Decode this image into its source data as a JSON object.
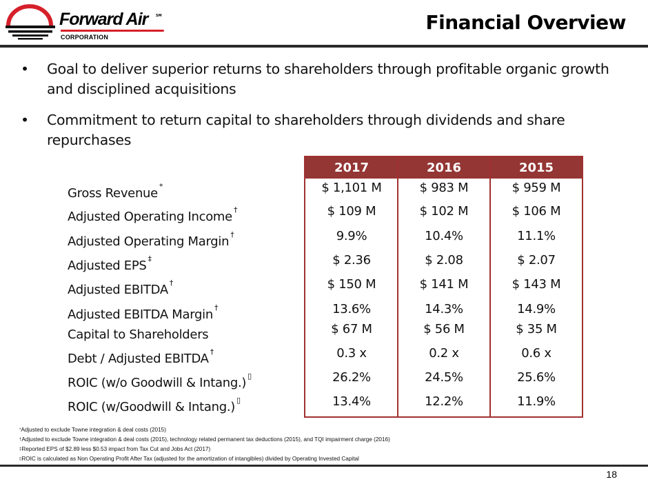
{
  "logo": {
    "name": "Forward Air",
    "mark": "SM",
    "subtitle": "CORPORATION"
  },
  "header": {
    "title": "Financial Overview"
  },
  "bullets": [
    {
      "symbol": "•",
      "text": "Goal to deliver superior returns to shareholders through profitable organic growth and disciplined acquisitions"
    },
    {
      "symbol": "•",
      "text": "Commitment to return capital to shareholders through dividends and share repurchases"
    }
  ],
  "table": {
    "columns": [
      "2017",
      "2016",
      "2015"
    ],
    "rows": [
      {
        "label": "Gross Revenue",
        "mark": "*",
        "values": [
          "$ 1,101 M",
          "$ 983 M",
          "$ 959 M"
        ]
      },
      {
        "label": "Adjusted Operating Income",
        "mark": "†",
        "values": [
          "$ 109 M",
          "$ 102 M",
          "$ 106 M"
        ]
      },
      {
        "label": "Adjusted Operating Margin",
        "mark": "†",
        "values": [
          "9.9%",
          "10.4%",
          "11.1%"
        ]
      },
      {
        "label": "Adjusted EPS",
        "mark": "‡",
        "values": [
          "$ 2.36",
          "$ 2.08",
          "$ 2.07"
        ]
      },
      {
        "label": "Adjusted EBITDA",
        "mark": "†",
        "values": [
          "$ 150 M",
          "$ 141 M",
          "$ 143 M"
        ]
      },
      {
        "label": "Adjusted EBITDA Margin",
        "mark": "†",
        "values": [
          "13.6%",
          "14.3%",
          "14.9%"
        ]
      },
      {
        "label": "Capital to Shareholders",
        "mark": "",
        "values": [
          "$ 67 M",
          "$ 56 M",
          "$ 35 M"
        ]
      },
      {
        "label": "Debt / Adjusted EBITDA",
        "mark": "†",
        "values": [
          "0.3 x",
          "0.2 x",
          "0.6 x"
        ]
      },
      {
        "label": "ROIC  (w/o Goodwill & Intang.)",
        "mark": "▯",
        "values": [
          "26.2%",
          "24.5%",
          "25.6%"
        ]
      },
      {
        "label": "ROIC  (w/Goodwill & Intang.)",
        "mark": "▯",
        "values": [
          "13.4%",
          "12.2%",
          "11.9%"
        ]
      }
    ]
  },
  "footnotes": [
    {
      "mark": "*",
      "text": "Adjusted to exclude Towne integration & deal costs (2015)"
    },
    {
      "mark": "†",
      "text": "Adjusted to exclude Towne integration & deal costs (2015), technology related permanent tax deductions (2015), and TQI impairment charge (2016)"
    },
    {
      "mark": "‡",
      "text": "Reported EPS of $2.89 less $0.53 impact from Tax Cut and Jobs Act (2017)"
    },
    {
      "mark": "▯",
      "text": "ROIC is calculated as Non Operating Profit After Tax (adjusted for the amortization of intangibles) divided by Operating Invested Capital"
    }
  ],
  "footer": {
    "page_number": "18"
  },
  "colors": {
    "table_header_bg": "#943634",
    "table_border": "#a03030",
    "logo_red": "#d6202a",
    "rule": "#2a2a2a"
  }
}
